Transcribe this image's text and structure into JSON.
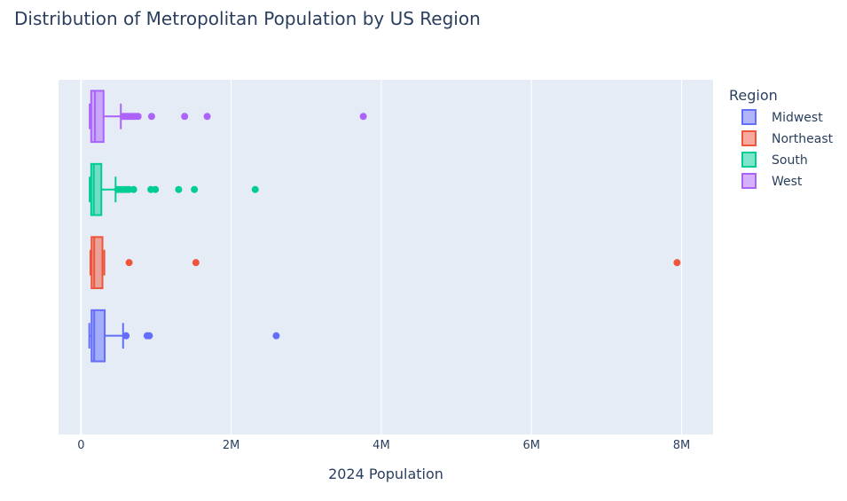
{
  "chart_data": {
    "type": "box",
    "orientation": "horizontal",
    "title": "Distribution of Metropolitan Population by US Region",
    "xlabel": "2024 Population",
    "ylabel": "",
    "xlim": [
      -300000,
      8420000
    ],
    "x_ticks": [
      {
        "value": 0,
        "label": "0"
      },
      {
        "value": 2000000,
        "label": "2M"
      },
      {
        "value": 4000000,
        "label": "4M"
      },
      {
        "value": 6000000,
        "label": "6M"
      },
      {
        "value": 8000000,
        "label": "8M"
      }
    ],
    "grid": true,
    "legend_title": "Region",
    "legend_position": "top-right",
    "series": [
      {
        "name": "Midwest",
        "color": "#636efa",
        "fill": "rgba(99,110,250,0.5)",
        "min": 110000,
        "q1": 140000,
        "median": 175000,
        "q3": 315000,
        "max": 560000,
        "outliers": [
          600000,
          880000,
          910000,
          2600000
        ]
      },
      {
        "name": "Northeast",
        "color": "#EF553B",
        "fill": "rgba(239,85,59,0.5)",
        "min": 125000,
        "q1": 140000,
        "median": 175000,
        "q3": 285000,
        "max": 310000,
        "outliers": [
          640000,
          1530000,
          7940000
        ]
      },
      {
        "name": "South",
        "color": "#00cc96",
        "fill": "rgba(0,204,150,0.5)",
        "min": 115000,
        "q1": 135000,
        "median": 170000,
        "q3": 270000,
        "max": 460000,
        "outliers": [
          490000,
          530000,
          560000,
          600000,
          640000,
          700000,
          930000,
          990000,
          1300000,
          1510000,
          2320000
        ]
      },
      {
        "name": "West",
        "color": "#ab63fa",
        "fill": "rgba(171,99,250,0.5)",
        "min": 115000,
        "q1": 135000,
        "median": 185000,
        "q3": 300000,
        "max": 530000,
        "outliers": [
          560000,
          590000,
          620000,
          650000,
          680000,
          720000,
          760000,
          940000,
          1380000,
          1680000,
          3760000
        ]
      }
    ]
  }
}
